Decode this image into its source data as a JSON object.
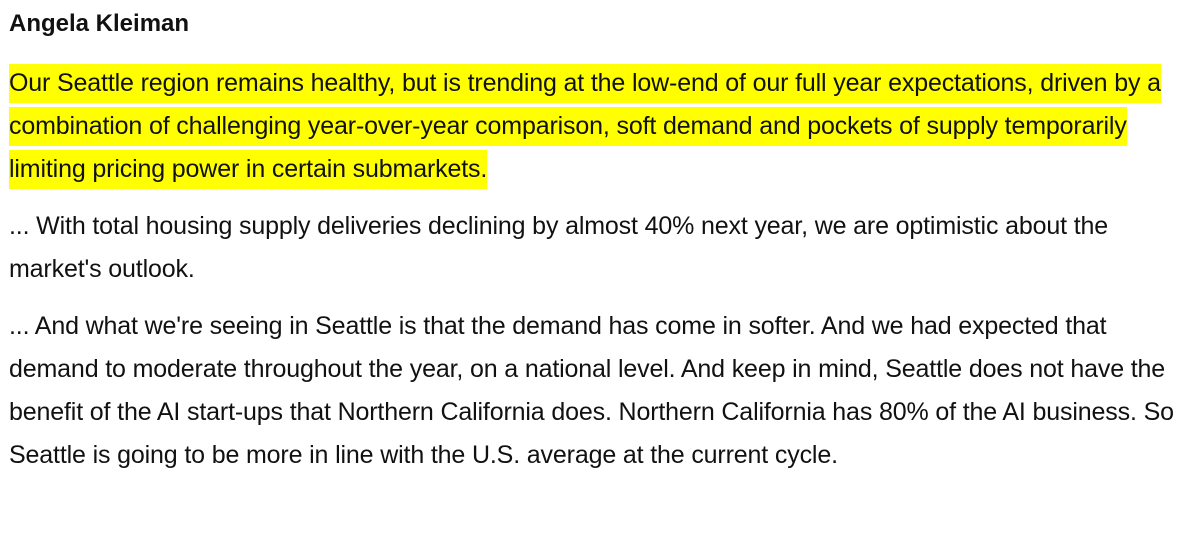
{
  "speaker": {
    "name": "Angela Kleiman"
  },
  "paragraphs": {
    "highlighted": "Our Seattle region remains healthy, but is trending at the low-end of our full year expectations, driven by a combination of challenging year-over-year comparison, soft demand and pockets of supply temporarily limiting pricing power in certain submarkets.",
    "second": "... With total housing supply deliveries declining by almost 40% next year, we are optimistic about the market's outlook.",
    "third": "... And what we're seeing in Seattle is that the demand has come in softer. And we had expected that demand to moderate throughout the year, on a national level. And keep in mind, Seattle does not have the benefit of the AI start-ups that Northern California does. Northern California has 80% of the AI business. So Seattle is going to be more in line with the U.S. average at the current cycle."
  },
  "colors": {
    "highlight": "#ffff00",
    "text": "#111111"
  }
}
